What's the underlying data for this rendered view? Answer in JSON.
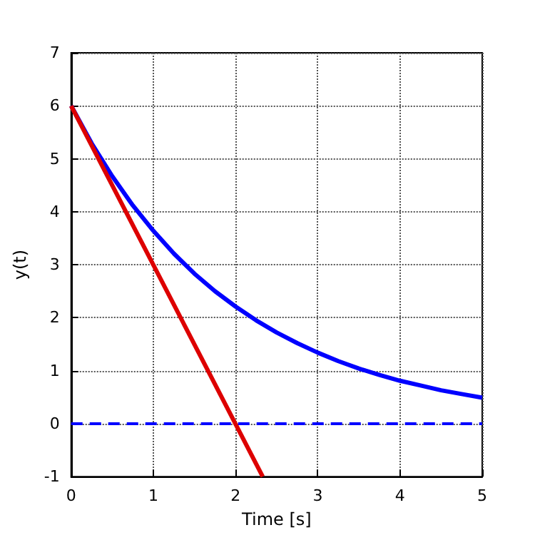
{
  "chart_data": {
    "type": "line",
    "xlabel": "Time [s]",
    "ylabel": "y(t)",
    "x": [
      0,
      0.25,
      0.5,
      0.75,
      1,
      1.25,
      1.5,
      1.75,
      2,
      2.25,
      2.5,
      2.75,
      3,
      3.25,
      3.5,
      3.75,
      4,
      4.25,
      4.5,
      4.75,
      5
    ],
    "series": [
      {
        "color": "#0000ff",
        "values": [
          6,
          5.29,
          4.67,
          4.12,
          3.64,
          3.21,
          2.83,
          2.5,
          2.21,
          1.95,
          1.72,
          1.52,
          1.34,
          1.18,
          1.04,
          0.92,
          0.81,
          0.72,
          0.63,
          0.56,
          0.49
        ]
      },
      {
        "color": "#dd0000",
        "x": [
          0,
          2.33
        ],
        "values": [
          6,
          -1
        ]
      }
    ],
    "ref_lines": [
      {
        "axis": "y",
        "value": 0,
        "color": "#0000ff",
        "line_style": "dashed"
      }
    ],
    "xlim": [
      0,
      5
    ],
    "xticks": [
      0,
      1,
      2,
      3,
      4,
      5
    ],
    "ylim": [
      -1,
      7
    ],
    "yticks": [
      -1,
      0,
      1,
      2,
      3,
      4,
      5,
      6,
      7
    ],
    "grid": true,
    "marker": "none",
    "line_style": "solid"
  }
}
